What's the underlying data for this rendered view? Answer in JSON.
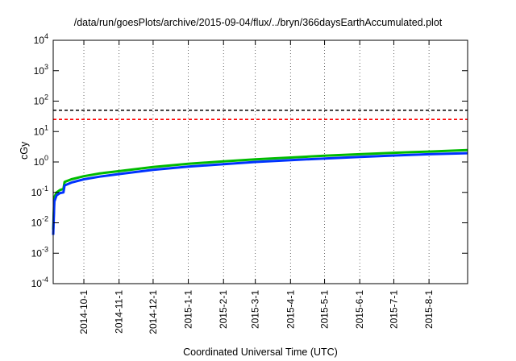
{
  "chart_data": {
    "type": "line",
    "title": "/data/run/goesPlots/archive/2015-09-04/flux/../bryn/366daysEarthAccumulated.plot",
    "xlabel": "Coordinated Universal Time (UTC)",
    "ylabel": "cGy",
    "y_scale": "log",
    "ylim": [
      0.0001,
      10000
    ],
    "xlim": [
      "2014-09-04",
      "2015-09-04"
    ],
    "y_ticks": [
      {
        "value": 0.0001,
        "base": "10",
        "exp": "-4"
      },
      {
        "value": 0.001,
        "base": "10",
        "exp": "-3"
      },
      {
        "value": 0.01,
        "base": "10",
        "exp": "-2"
      },
      {
        "value": 0.1,
        "base": "10",
        "exp": "-1"
      },
      {
        "value": 1,
        "base": "10",
        "exp": "0"
      },
      {
        "value": 10,
        "base": "10",
        "exp": "1"
      },
      {
        "value": 100,
        "base": "10",
        "exp": "2"
      },
      {
        "value": 1000,
        "base": "10",
        "exp": "3"
      },
      {
        "value": 10000,
        "base": "10",
        "exp": "4"
      }
    ],
    "x_ticks": [
      {
        "date": "2014-10-01",
        "label": "2014-10-1"
      },
      {
        "date": "2014-11-01",
        "label": "2014-11-1"
      },
      {
        "date": "2014-12-01",
        "label": "2014-12-1"
      },
      {
        "date": "2015-01-01",
        "label": "2015-1-1"
      },
      {
        "date": "2015-02-01",
        "label": "2015-2-1"
      },
      {
        "date": "2015-03-01",
        "label": "2015-3-1"
      },
      {
        "date": "2015-04-01",
        "label": "2015-4-1"
      },
      {
        "date": "2015-05-01",
        "label": "2015-5-1"
      },
      {
        "date": "2015-06-01",
        "label": "2015-6-1"
      },
      {
        "date": "2015-07-01",
        "label": "2015-7-1"
      },
      {
        "date": "2015-08-01",
        "label": "2015-8-1"
      }
    ],
    "grid": "vertical dotted",
    "thresholds": [
      {
        "value": 50,
        "color": "#000000",
        "style": "dashed"
      },
      {
        "value": 25,
        "color": "#ff0000",
        "style": "dashed"
      }
    ],
    "series": [
      {
        "color": "#00bb00",
        "points": [
          {
            "x": "2014-09-04",
            "y": 0.006
          },
          {
            "x": "2014-09-05",
            "y": 0.07
          },
          {
            "x": "2014-09-07",
            "y": 0.1
          },
          {
            "x": "2014-09-10",
            "y": 0.12
          },
          {
            "x": "2014-09-13",
            "y": 0.13
          },
          {
            "x": "2014-09-14",
            "y": 0.22
          },
          {
            "x": "2014-09-20",
            "y": 0.27
          },
          {
            "x": "2014-10-01",
            "y": 0.34
          },
          {
            "x": "2014-10-15",
            "y": 0.42
          },
          {
            "x": "2014-11-01",
            "y": 0.5
          },
          {
            "x": "2014-12-01",
            "y": 0.68
          },
          {
            "x": "2015-01-01",
            "y": 0.87
          },
          {
            "x": "2015-02-01",
            "y": 1.05
          },
          {
            "x": "2015-03-01",
            "y": 1.22
          },
          {
            "x": "2015-04-01",
            "y": 1.4
          },
          {
            "x": "2015-05-01",
            "y": 1.6
          },
          {
            "x": "2015-06-01",
            "y": 1.8
          },
          {
            "x": "2015-07-01",
            "y": 2.0
          },
          {
            "x": "2015-08-01",
            "y": 2.2
          },
          {
            "x": "2015-09-04",
            "y": 2.45
          }
        ]
      },
      {
        "color": "#0033ff",
        "points": [
          {
            "x": "2014-09-04",
            "y": 0.004
          },
          {
            "x": "2014-09-05",
            "y": 0.05
          },
          {
            "x": "2014-09-07",
            "y": 0.08
          },
          {
            "x": "2014-09-10",
            "y": 0.095
          },
          {
            "x": "2014-09-13",
            "y": 0.1
          },
          {
            "x": "2014-09-14",
            "y": 0.17
          },
          {
            "x": "2014-09-20",
            "y": 0.21
          },
          {
            "x": "2014-10-01",
            "y": 0.27
          },
          {
            "x": "2014-10-15",
            "y": 0.33
          },
          {
            "x": "2014-11-01",
            "y": 0.4
          },
          {
            "x": "2014-12-01",
            "y": 0.55
          },
          {
            "x": "2015-01-01",
            "y": 0.7
          },
          {
            "x": "2015-02-01",
            "y": 0.85
          },
          {
            "x": "2015-03-01",
            "y": 1.0
          },
          {
            "x": "2015-04-01",
            "y": 1.15
          },
          {
            "x": "2015-05-01",
            "y": 1.3
          },
          {
            "x": "2015-06-01",
            "y": 1.47
          },
          {
            "x": "2015-07-01",
            "y": 1.63
          },
          {
            "x": "2015-08-01",
            "y": 1.8
          },
          {
            "x": "2015-09-04",
            "y": 1.95
          }
        ]
      }
    ]
  }
}
